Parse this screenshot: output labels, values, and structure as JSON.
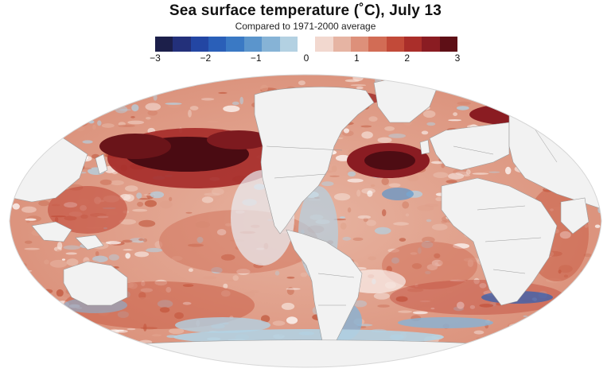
{
  "title": "Sea surface temperature (˚C), July 13",
  "subtitle": "Compared to 1971-2000 average",
  "colors": {
    "land": "#f2f2f2",
    "border": "#9a9a9a",
    "zero": "#ffffff"
  },
  "legend": {
    "min": -3,
    "max": 3,
    "ticks": [
      "−3",
      "−2",
      "−1",
      "0",
      "1",
      "2",
      "3"
    ],
    "swatches": [
      "#1c1f4a",
      "#23307a",
      "#2346a3",
      "#2a5fb8",
      "#3a79c4",
      "#5b95cc",
      "#86b3d6",
      "#b3d1e2",
      "#ffffff",
      "#f2d8cf",
      "#e6b4a3",
      "#dd907a",
      "#d26c55",
      "#c24a39",
      "#aa2e2a",
      "#8a1c22",
      "#5e0f16"
    ]
  }
}
